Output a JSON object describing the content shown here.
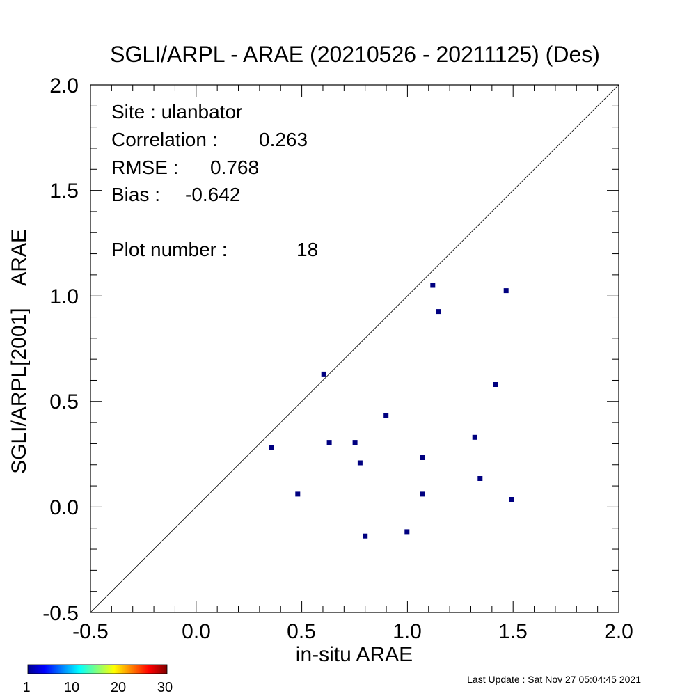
{
  "chart_data": {
    "type": "scatter",
    "title": "SGLI/ARPL - ARAE (20210526 - 20211125) (Des)",
    "xlabel": "in-situ ARAE",
    "ylabel": "SGLI/ARPL[2001]    ARAE",
    "xlim": [
      -0.5,
      2.0
    ],
    "ylim": [
      -0.5,
      2.0
    ],
    "x_ticks": [
      "-0.5",
      "0.0",
      "0.5",
      "1.0",
      "1.5",
      "2.0"
    ],
    "y_ticks": [
      "-0.5",
      "0.0",
      "0.5",
      "1.0",
      "1.5",
      "2.0"
    ],
    "reference_line": "1:1",
    "grid": false,
    "marker_color": "#000080",
    "points": [
      {
        "x": 0.357,
        "y": 0.281
      },
      {
        "x": 0.481,
        "y": 0.061
      },
      {
        "x": 0.604,
        "y": 0.63
      },
      {
        "x": 0.63,
        "y": 0.306
      },
      {
        "x": 0.752,
        "y": 0.306
      },
      {
        "x": 0.776,
        "y": 0.209
      },
      {
        "x": 0.8,
        "y": -0.138
      },
      {
        "x": 0.899,
        "y": 0.432
      },
      {
        "x": 0.998,
        "y": -0.117
      },
      {
        "x": 1.071,
        "y": 0.234
      },
      {
        "x": 1.071,
        "y": 0.061
      },
      {
        "x": 1.12,
        "y": 1.05
      },
      {
        "x": 1.146,
        "y": 0.926
      },
      {
        "x": 1.319,
        "y": 0.33
      },
      {
        "x": 1.344,
        "y": 0.135
      },
      {
        "x": 1.417,
        "y": 0.58
      },
      {
        "x": 1.467,
        "y": 1.025
      },
      {
        "x": 1.492,
        "y": 0.036
      }
    ]
  },
  "stats": {
    "site": "Site : ulanbator",
    "correlation_label": "Correlation :",
    "correlation_value": "0.263",
    "rmse_label": "RMSE :",
    "rmse_value": "0.768",
    "bias_label": "Bias :",
    "bias_value": "-0.642",
    "plot_number_label": "Plot number :",
    "plot_number_value": "18"
  },
  "colorbar": {
    "colors": [
      "#00008f",
      "#0000ff",
      "#00ffff",
      "#ffff00",
      "#ff0000",
      "#800000"
    ],
    "tick_labels": [
      "1",
      "10",
      "20",
      "30"
    ]
  },
  "footer": {
    "last_update": "Last Update : Sat Nov 27 05:04:45 2021"
  }
}
